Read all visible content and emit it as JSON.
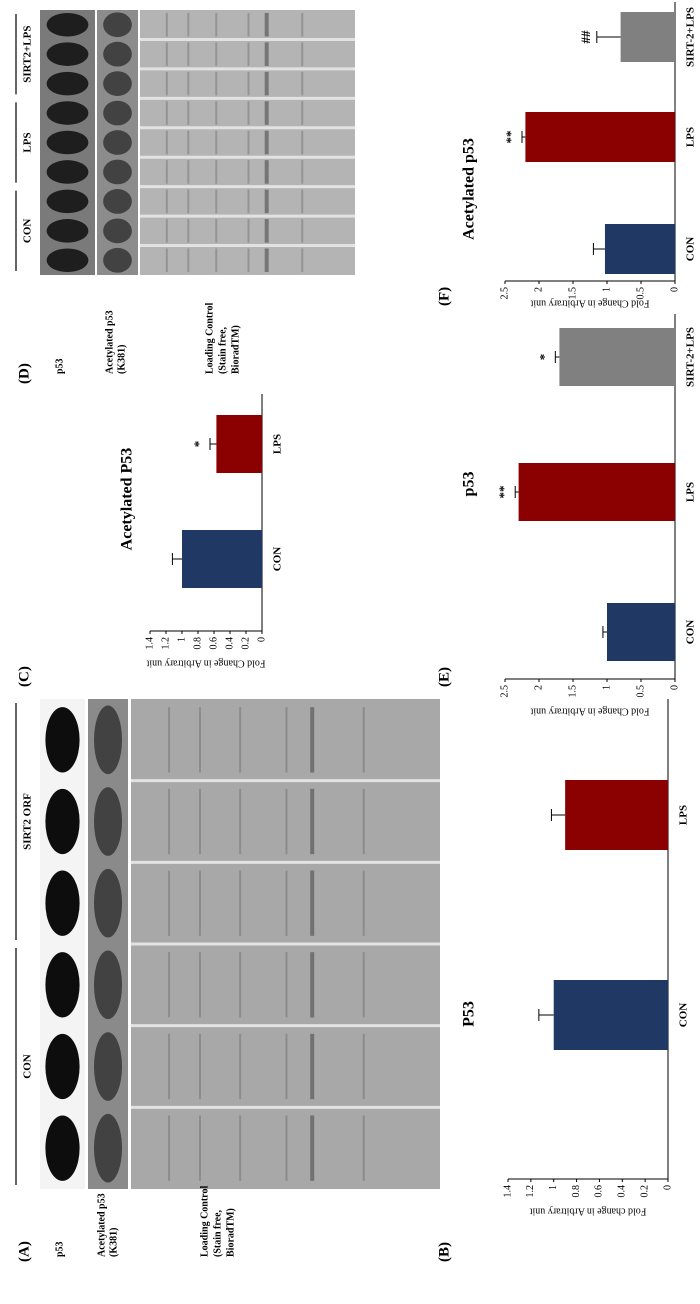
{
  "blots": [
    {
      "panel_label": "(A)",
      "groups": [
        "CON",
        "SIRT2 ORF"
      ],
      "rows": [
        [
          "p53"
        ],
        [
          "Acetylated p53",
          "(K381)"
        ],
        [
          "Loading Control",
          "(Stain free,",
          "BioradTM)"
        ]
      ]
    },
    {
      "panel_label": "(D)",
      "groups": [
        "CON",
        "LPS",
        "SIRT2+LPS"
      ],
      "rows": [
        [
          "p53"
        ],
        [
          "Acetylated p53",
          "(K381)"
        ],
        [
          "Loading Control",
          "(Stain free,",
          "BioradTM)"
        ]
      ]
    }
  ],
  "chart_data": [
    {
      "type": "bar",
      "panel_label": "(B)",
      "title": "P53",
      "ylabel": "Fold change in Arbitrary unit",
      "categories": [
        "CON",
        "LPS"
      ],
      "values": [
        1,
        0.9
      ],
      "errors": [
        0.13,
        0.12
      ],
      "colors": [
        "#1f3864",
        "#8b0000"
      ],
      "ylim": [
        0,
        1.4
      ],
      "yticks": [
        0,
        0.2,
        0.4,
        0.6,
        0.8,
        1,
        1.2,
        1.4
      ]
    },
    {
      "type": "bar",
      "panel_label": "(C)",
      "title": "Acetylated P53",
      "ylabel": "Fold Change in Arbitrary unit",
      "categories": [
        "CON",
        "LPS"
      ],
      "values": [
        1,
        0.57
      ],
      "errors": [
        0.12,
        0.08
      ],
      "annotations": [
        null,
        "*"
      ],
      "colors": [
        "#1f3864",
        "#8b0000"
      ],
      "ylim": [
        0,
        1.4
      ],
      "yticks": [
        0,
        0.2,
        0.4,
        0.6,
        0.8,
        1,
        1.2,
        1.4
      ]
    },
    {
      "type": "bar",
      "panel_label": "(E)",
      "title": "p53",
      "ylabel": "Fold Change in Arbitrary unit",
      "categories": [
        "CON",
        "LPS",
        "SIRT-2+LPS"
      ],
      "values": [
        1,
        2.3,
        1.7
      ],
      "errors": [
        0.06,
        0.05,
        0.06
      ],
      "annotations": [
        null,
        "**",
        "*"
      ],
      "colors": [
        "#1f3864",
        "#8b0000",
        "#808080"
      ],
      "ylim": [
        0,
        2.5
      ],
      "yticks": [
        0,
        0.5,
        1,
        1.5,
        2,
        2.5
      ]
    },
    {
      "type": "bar",
      "panel_label": "(F)",
      "title": "Acetylated p53",
      "ylabel": "Fold Change in Arbitrary unit",
      "categories": [
        "CON",
        "LPS",
        "SIRT-2+LPS"
      ],
      "values": [
        1.03,
        2.2,
        0.8
      ],
      "errors": [
        0.17,
        0.05,
        0.35
      ],
      "annotations": [
        null,
        "**",
        "##"
      ],
      "colors": [
        "#1f3864",
        "#8b0000",
        "#808080"
      ],
      "ylim": [
        0,
        2.5
      ],
      "yticks": [
        0,
        0.5,
        1,
        1.5,
        2,
        2.5
      ]
    }
  ]
}
